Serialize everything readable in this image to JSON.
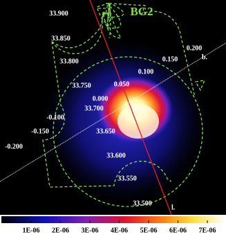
{
  "title": "BG2",
  "b_axis": {
    "label": "b.",
    "ticks": [
      "-0.200",
      "-0.150",
      "-0.100",
      "0.000",
      "0.050",
      "0.100",
      "0.150",
      "0.200"
    ]
  },
  "l_axis": {
    "label": "l.",
    "ticks": [
      "33.900",
      "33.850",
      "33.800",
      "33.750",
      "33.700",
      "33.650",
      "33.600",
      "33.550",
      "33.500"
    ]
  },
  "colorbar": {
    "ticks": [
      "1E-06",
      "2E-06",
      "3E-06",
      "4E-06",
      "5E-06",
      "6E-06",
      "7E-06"
    ]
  }
}
